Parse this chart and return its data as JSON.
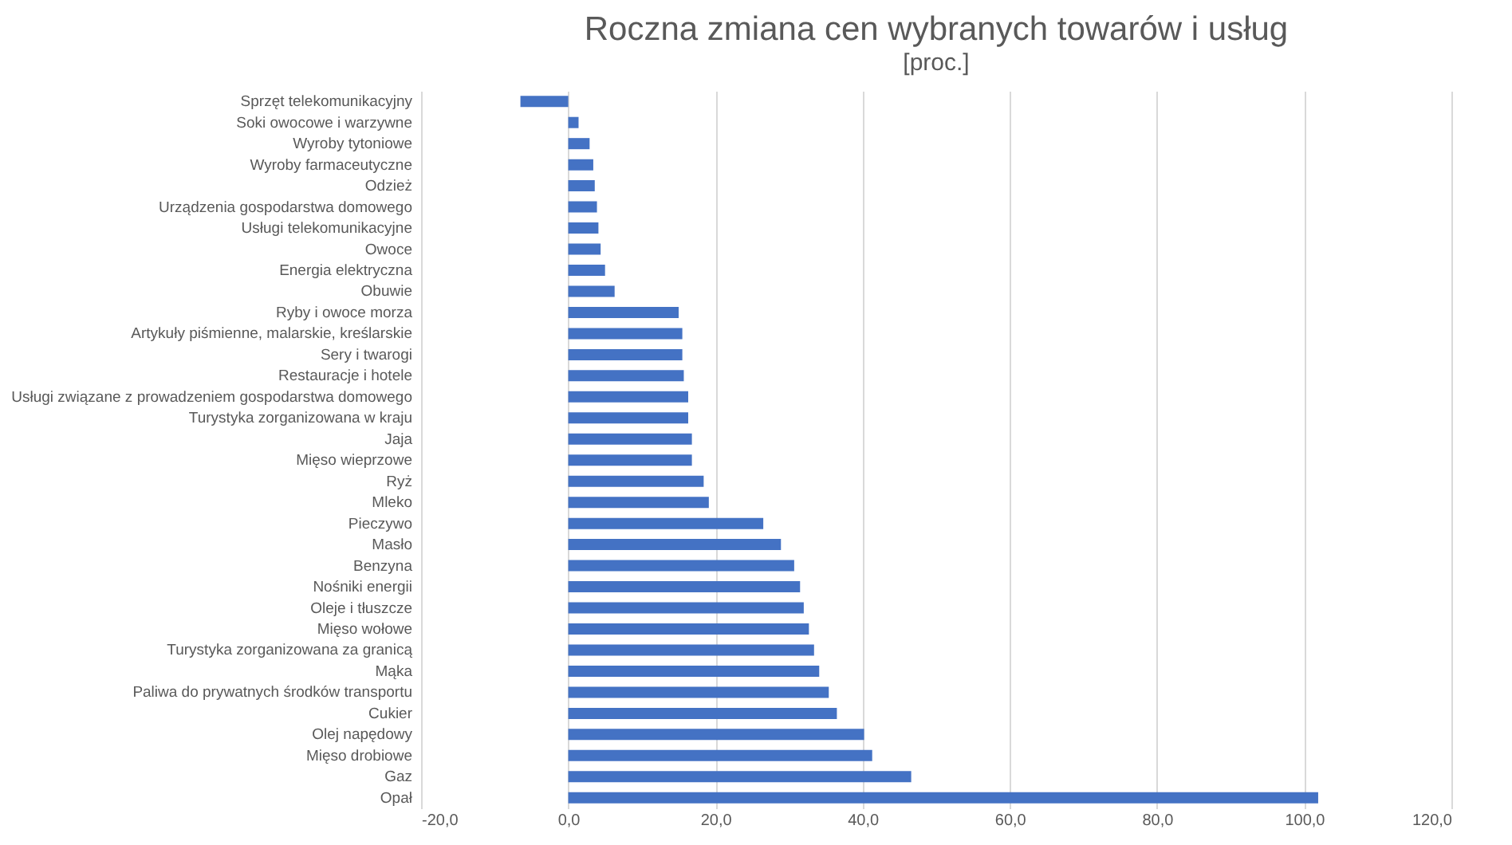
{
  "chart_data": {
    "type": "bar",
    "orientation": "horizontal",
    "title": "Roczna zmiana cen wybranych towarów i usług",
    "subtitle": "[proc.]",
    "categories": [
      "Sprzęt telekomunikacyjny",
      "Soki owocowe i warzywne",
      "Wyroby tytoniowe",
      "Wyroby farmaceutyczne",
      "Odzież",
      "Urządzenia gospodarstwa domowego",
      "Usługi telekomunikacyjne",
      "Owoce",
      "Energia elektryczna",
      "Obuwie",
      "Ryby i owoce morza",
      "Artykuły piśmienne, malarskie, kreślarskie",
      "Sery i twarogi",
      "Restauracje i hotele",
      "Usługi związane z prowadzeniem gospodarstwa domowego",
      "Turystyka zorganizowana w kraju",
      "Jaja",
      "Mięso wieprzowe",
      "Ryż",
      "Mleko",
      "Pieczywo",
      "Masło",
      "Benzyna",
      "Nośniki energii",
      "Oleje i tłuszcze",
      "Mięso wołowe",
      "Turystyka zorganizowana za granicą",
      "Mąka",
      "Paliwa do prywatnych środków transportu",
      "Cukier",
      "Olej napędowy",
      "Mięso drobiowe",
      "Gaz",
      "Opał"
    ],
    "values": [
      -6.5,
      1.4,
      2.9,
      3.4,
      3.6,
      3.9,
      4.1,
      4.4,
      5.0,
      6.3,
      15.0,
      15.5,
      15.5,
      15.7,
      16.3,
      16.3,
      16.8,
      16.8,
      18.4,
      19.1,
      26.5,
      28.9,
      30.7,
      31.5,
      32.0,
      32.7,
      33.4,
      34.1,
      35.4,
      36.5,
      40.2,
      41.3,
      46.6,
      101.9
    ],
    "color": "#4472c4",
    "xlim": [
      -20,
      120
    ],
    "xticks": [
      {
        "value": -20,
        "label": "-20,0"
      },
      {
        "value": 0,
        "label": "0,0"
      },
      {
        "value": 20,
        "label": "20,0"
      },
      {
        "value": 40,
        "label": "40,0"
      },
      {
        "value": 60,
        "label": "60,0"
      },
      {
        "value": 80,
        "label": "80,0"
      },
      {
        "value": 100,
        "label": "100,0"
      },
      {
        "value": 120,
        "label": "120,0"
      }
    ],
    "grid": "x"
  }
}
